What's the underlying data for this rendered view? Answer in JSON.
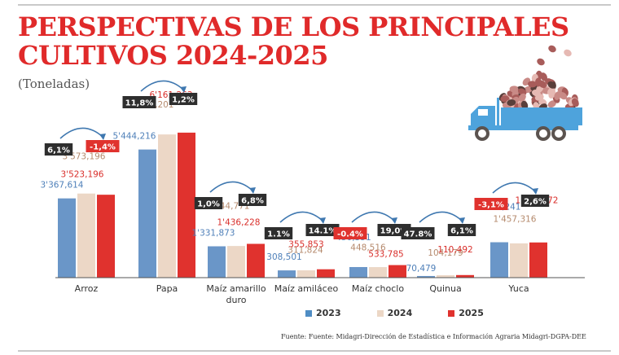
{
  "header": {
    "title_line1": "PERSPECTIVAS DE LOS PRINCIPALES",
    "title_line2": "CULTIVOS 2024-2025",
    "subtitle": "(Toneladas)"
  },
  "illustration": {
    "name": "truck-with-potatoes",
    "truck_color": "#4ea3dc",
    "wheel_color": "#5b534f",
    "cargo_colors": [
      "#c98a86",
      "#a85c5a",
      "#5a3f3b",
      "#e6b9b3"
    ]
  },
  "colors": {
    "2023": "#6a96c8",
    "2024": "#ecd7c6",
    "2025": "#e0322e",
    "badge_dark": "#2e2e2e",
    "badge_red": "#e0322e",
    "arrow": "#3f78b0",
    "label_2023": "#4f80b9",
    "label_2024": "#b58a6d",
    "label_2025": "#d92e2a"
  },
  "legend": [
    {
      "label": "2023",
      "series": "2023"
    },
    {
      "label": "2024",
      "series": "2024"
    },
    {
      "label": "2025",
      "series": "2025"
    }
  ],
  "source": "Fuente: Fuente: Midagri-Dirección de Estadística e Información Agraria Midagri-DGPA-DEE",
  "chart_data": {
    "type": "bar",
    "title": "PERSPECTIVAS DE LOS PRINCIPALES CULTIVOS 2024-2025",
    "subtitle": "(Toneladas)",
    "xlabel": "",
    "ylabel": "Toneladas",
    "ylim": [
      0,
      6500000
    ],
    "grid": false,
    "legend_position": "bottom",
    "categories": [
      "Arroz",
      "Papa",
      "Maíz amarillo duro",
      "Maíz amiláceo",
      "Maíz choclo",
      "Quinua",
      "Yuca"
    ],
    "category_labels": [
      [
        "Arroz"
      ],
      [
        "Papa"
      ],
      [
        "Maíz amarillo",
        "duro"
      ],
      [
        "Maíz amiláceo"
      ],
      [
        "Maíz choclo"
      ],
      [
        "Quinua"
      ],
      [
        "Yuca"
      ]
    ],
    "series": [
      {
        "name": "2023",
        "values": [
          3367614,
          5444216,
          1331873,
          308501,
          450351,
          70479,
          1504241
        ],
        "labels": [
          "3'367,614",
          "5'444,216",
          "1'331,873",
          "308,501",
          "450,351",
          "70,479",
          "1'504,241"
        ]
      },
      {
        "name": "2024",
        "values": [
          3573196,
          6085201,
          1344771,
          311824,
          448516,
          104179,
          1457316
        ],
        "labels": [
          "3'573,196",
          "6'085,201",
          "1'344,771",
          "311,824",
          "448,516",
          "104,179",
          "1'457,316"
        ]
      },
      {
        "name": "2025",
        "values": [
          3523196,
          6161263,
          1436228,
          355853,
          533785,
          110492,
          1495272
        ],
        "labels": [
          "3'523,196",
          "6'161,263",
          "1'436,228",
          "355,853",
          "533,785",
          "110,492",
          "1'495,272"
        ]
      }
    ],
    "annotations": {
      "change_2023_2024": [
        {
          "text": "6,1%",
          "negative": false
        },
        {
          "text": "11,8%",
          "negative": false
        },
        {
          "text": "1,0%",
          "negative": false
        },
        {
          "text": "1.1%",
          "negative": false
        },
        {
          "text": "-0.4%",
          "negative": true
        },
        {
          "text": "47.8%",
          "negative": false
        },
        {
          "text": "-3,1%",
          "negative": true
        }
      ],
      "change_2024_2025": [
        {
          "text": "-1,4%",
          "negative": true
        },
        {
          "text": "1,2%",
          "negative": false
        },
        {
          "text": "6,8%",
          "negative": false
        },
        {
          "text": "14.1%",
          "negative": false
        },
        {
          "text": "19,0%",
          "negative": false
        },
        {
          "text": "6,1%",
          "negative": false
        },
        {
          "text": "2,6%",
          "negative": false
        }
      ]
    }
  }
}
